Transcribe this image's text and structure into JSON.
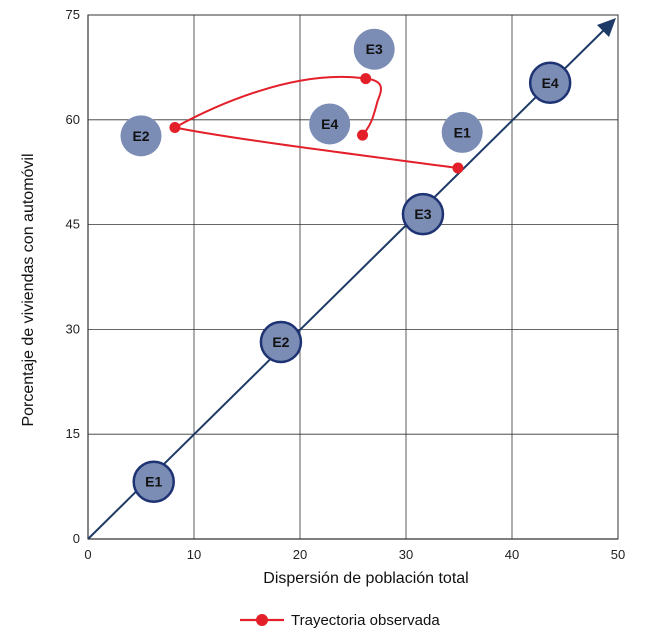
{
  "chart_data": {
    "type": "scatter",
    "title": "",
    "xlabel": "Dispersión de población total",
    "ylabel": "Porcentaje de viviendas con automóvil",
    "xlim": [
      0,
      50
    ],
    "ylim": [
      0,
      75
    ],
    "x_ticks": [
      0,
      10,
      20,
      30,
      40,
      50
    ],
    "y_ticks": [
      0,
      15,
      30,
      45,
      60,
      75
    ],
    "grid": true,
    "colors": {
      "circle_fill": "#7b8db5",
      "circle_stroke": "#1e3373",
      "diagonal": "#1e3a66",
      "trajectory": "#e3202a",
      "grid": "#333333"
    },
    "diagonal_stages": [
      {
        "label": "E1",
        "x": 6.2,
        "y": 8.2
      },
      {
        "label": "E2",
        "x": 18.2,
        "y": 28.2
      },
      {
        "label": "E3",
        "x": 31.6,
        "y": 46.5
      },
      {
        "label": "E4",
        "x": 43.6,
        "y": 65.3
      }
    ],
    "observed_stages": [
      {
        "label": "E1",
        "x": 35.3,
        "y": 58.2
      },
      {
        "label": "E2",
        "x": 5.0,
        "y": 57.7
      },
      {
        "label": "E3",
        "x": 27.0,
        "y": 70.1
      },
      {
        "label": "E4",
        "x": 22.8,
        "y": 59.4
      }
    ],
    "trajectory": {
      "name": "Trayectoria observada",
      "points": [
        {
          "x": 34.9,
          "y": 53.1
        },
        {
          "x": 8.2,
          "y": 58.9
        },
        {
          "x": 26.2,
          "y": 65.9
        },
        {
          "x": 25.9,
          "y": 57.8
        }
      ]
    },
    "legend": {
      "position": "bottom",
      "entries": [
        "Trayectoria observada"
      ]
    }
  }
}
